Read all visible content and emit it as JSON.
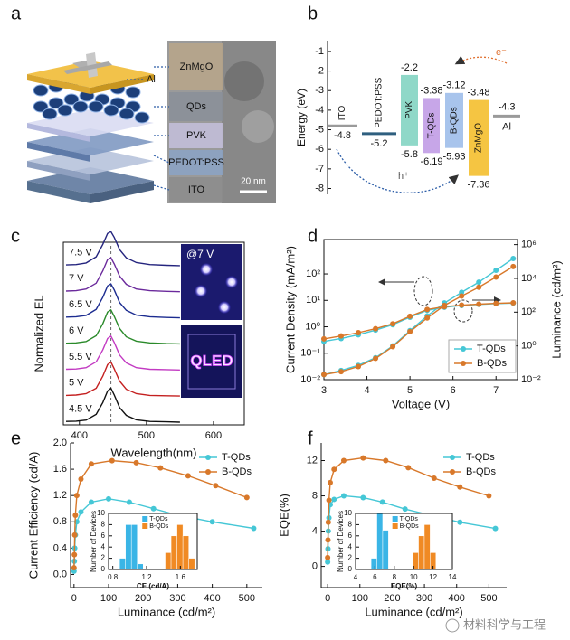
{
  "panel_labels": [
    "a",
    "b",
    "c",
    "d",
    "e",
    "f"
  ],
  "panel_a": {
    "labels": [
      "Al",
      "ZnMgO",
      "QDs",
      "PVK",
      "PEDOT:PSS",
      "ITO"
    ],
    "scale_bar": "20 nm"
  },
  "watermark": "材料科学与工程",
  "chart_data": [
    {
      "type": "range",
      "ylabel": "Energy (eV)",
      "categories": [
        "ITO",
        "PEDOT:PSS",
        "PVK",
        "T-QDs",
        "B-QDs",
        "ZnMgO",
        "Al"
      ],
      "top": [
        null,
        null,
        -2.2,
        -3.38,
        -3.12,
        -3.48,
        null
      ],
      "bottom": [
        -4.8,
        -5.2,
        -5.8,
        -6.19,
        -5.93,
        -7.36,
        -4.3
      ],
      "colors": [
        "#9a9a9a",
        "#2f5f7f",
        "#8fd8c8",
        "#c7a6e8",
        "#a8c4ec",
        "#f5c542",
        "#9a9a9a"
      ],
      "ylim": [
        -8.3,
        -0.45
      ],
      "yticks": [
        -1,
        -2,
        -3,
        -4,
        -5,
        -6,
        -7,
        -8
      ],
      "annotations": [
        "e⁻",
        "h⁺"
      ]
    },
    {
      "type": "ridgeline",
      "ylabel": "Normalized EL",
      "xlabel": "Wavelength(nm)",
      "x": [
        380,
        395,
        410,
        425,
        435,
        442,
        447,
        452,
        460,
        470,
        485,
        505,
        530,
        550
      ],
      "xlim": [
        376,
        646
      ],
      "xticks": [
        400,
        500,
        600
      ],
      "ylim": [
        0,
        1
      ],
      "peak_line": 447,
      "photo_labels": [
        "@7 V",
        "QLED"
      ],
      "series": [
        {
          "name": "7.5 V",
          "color": "#24247e",
          "values": [
            0.02,
            0.03,
            0.08,
            0.26,
            0.63,
            0.95,
            1,
            0.83,
            0.47,
            0.23,
            0.09,
            0.03,
            0.01,
            0
          ]
        },
        {
          "name": "7 V",
          "color": "#6b2a9c",
          "values": [
            0.02,
            0.03,
            0.08,
            0.25,
            0.62,
            0.95,
            1,
            0.82,
            0.46,
            0.22,
            0.08,
            0.03,
            0.01,
            0
          ]
        },
        {
          "name": "6.5 V",
          "color": "#1c2c90",
          "values": [
            0.02,
            0.03,
            0.07,
            0.25,
            0.61,
            0.94,
            1,
            0.82,
            0.45,
            0.22,
            0.08,
            0.03,
            0.01,
            0
          ]
        },
        {
          "name": "6 V",
          "color": "#2a8a2a",
          "values": [
            0.02,
            0.03,
            0.07,
            0.24,
            0.6,
            0.94,
            1,
            0.81,
            0.45,
            0.21,
            0.08,
            0.03,
            0.01,
            0
          ]
        },
        {
          "name": "5.5 V",
          "color": "#c23ac2",
          "values": [
            0.02,
            0.03,
            0.07,
            0.24,
            0.6,
            0.93,
            1,
            0.81,
            0.44,
            0.21,
            0.07,
            0.02,
            0.01,
            0
          ]
        },
        {
          "name": "5 V",
          "color": "#c42020",
          "values": [
            0.02,
            0.03,
            0.07,
            0.23,
            0.59,
            0.93,
            1,
            0.8,
            0.44,
            0.2,
            0.07,
            0.02,
            0.01,
            0
          ]
        },
        {
          "name": "4.5 V",
          "color": "#111111",
          "values": [
            0.02,
            0.03,
            0.06,
            0.23,
            0.58,
            0.92,
            1,
            0.8,
            0.43,
            0.2,
            0.07,
            0.02,
            0.01,
            0
          ]
        }
      ]
    },
    {
      "type": "line",
      "xlabel": "Voltage (V)",
      "ylabel": "Current Density (mA/m²)",
      "y2label": "Luminance (cd/m²)",
      "x": [
        3.0,
        3.4,
        3.8,
        4.2,
        4.6,
        5.0,
        5.4,
        5.8,
        6.2,
        6.6,
        7.0,
        7.4
      ],
      "xlim": [
        3,
        7.5
      ],
      "xticks": [
        3,
        4,
        5,
        6,
        7
      ],
      "ylog": true,
      "ylim": [
        0.01,
        2000
      ],
      "yticks": [
        {
          "value": 0.01,
          "label": "10⁻²"
        },
        {
          "value": 0.1,
          "label": "10⁻¹"
        },
        {
          "value": 1,
          "label": "10⁰"
        },
        {
          "value": 10,
          "label": "10¹"
        },
        {
          "value": 100,
          "label": "10²"
        }
      ],
      "y2log": true,
      "y2lim": [
        0.01,
        2000000
      ],
      "y2ticks": [
        {
          "value": 0.01,
          "label": "10⁻²"
        },
        {
          "value": 1,
          "label": "10⁰"
        },
        {
          "value": 100,
          "label": "10²"
        },
        {
          "value": 10000,
          "label": "10⁴"
        },
        {
          "value": 1000000,
          "label": "10⁶"
        }
      ],
      "legend": "lower right",
      "series": [
        {
          "name": "T-QDs",
          "color": "#45c7d6",
          "values": [
            0.28,
            0.36,
            0.5,
            0.75,
            1.2,
            2.3,
            4.2,
            5.5,
            6.4,
            7.0,
            7.5,
            7.9
          ],
          "y2_values": [
            0.02,
            0.035,
            0.07,
            0.2,
            1.0,
            8,
            60,
            350,
            1500,
            6000,
            30000,
            150000
          ]
        },
        {
          "name": "B-QDs",
          "color": "#d8782a",
          "values": [
            0.35,
            0.45,
            0.6,
            0.85,
            1.3,
            2.5,
            4.5,
            5.8,
            6.6,
            7.2,
            7.7,
            8.1
          ],
          "y2_values": [
            0.02,
            0.03,
            0.06,
            0.18,
            0.9,
            7,
            45,
            250,
            900,
            3000,
            12000,
            50000
          ]
        }
      ]
    },
    {
      "type": "line",
      "xlabel": "Luminance (cd/m²)",
      "ylabel": "Current Efficiency (cd/A)",
      "xlim": [
        -10,
        545
      ],
      "xticks": [
        0,
        100,
        200,
        300,
        400,
        500
      ],
      "ylim": [
        -0.2,
        2.0
      ],
      "yticks": [
        {
          "value": 0,
          "label": "0.0"
        },
        0.4,
        0.8,
        1.2,
        1.6,
        {
          "value": 2,
          "label": "2.0"
        }
      ],
      "legend": "upper right",
      "series": [
        {
          "name": "T-QDs",
          "color": "#45c7d6",
          "x": [
            0,
            1,
            2,
            4,
            8,
            20,
            50,
            100,
            160,
            230,
            300,
            400,
            520
          ],
          "values": [
            0.05,
            0.2,
            0.4,
            0.6,
            0.8,
            0.95,
            1.1,
            1.15,
            1.1,
            1.0,
            0.9,
            0.8,
            0.7
          ]
        },
        {
          "name": "B-QDs",
          "color": "#d8782a",
          "x": [
            0,
            1,
            2,
            4,
            8,
            20,
            50,
            110,
            180,
            250,
            330,
            410,
            500
          ],
          "values": [
            0.1,
            0.3,
            0.6,
            0.9,
            1.2,
            1.45,
            1.68,
            1.73,
            1.7,
            1.62,
            1.5,
            1.35,
            1.17
          ]
        }
      ]
    },
    {
      "type": "histogram",
      "xlabel": "CE (cd/A)",
      "ylabel": "Number of Devices",
      "xlim": [
        0.75,
        1.8
      ],
      "xticks": [
        0.8,
        1.2,
        1.6
      ],
      "ylim": [
        0,
        10
      ],
      "yticks": [
        0,
        2,
        4,
        6,
        8,
        10
      ],
      "series": [
        {
          "name": "T-QDs",
          "color": "#3ab5e6",
          "bins": [
            0.88,
            0.95,
            1.02,
            1.09,
            1.16
          ],
          "values": [
            2,
            8,
            8,
            1
          ]
        },
        {
          "name": "B-QDs",
          "color": "#f08a24",
          "bins": [
            1.42,
            1.49,
            1.56,
            1.63,
            1.7,
            1.77
          ],
          "values": [
            3,
            6,
            8,
            6,
            2
          ]
        }
      ]
    },
    {
      "type": "line",
      "xlabel": "Luminance (cd/m²)",
      "ylabel": "EQE(%)",
      "xlim": [
        -20,
        555
      ],
      "xticks": [
        0,
        100,
        200,
        300,
        400,
        500
      ],
      "ylim": [
        -2.4,
        14
      ],
      "yticks": [
        0,
        4,
        8,
        12
      ],
      "legend": "upper right",
      "series": [
        {
          "name": "T-QDs",
          "color": "#45c7d6",
          "x": [
            0,
            1,
            2,
            4,
            8,
            20,
            50,
            110,
            170,
            240,
            320,
            410,
            520
          ],
          "values": [
            0.5,
            2,
            4,
            5.5,
            7,
            7.6,
            8,
            7.8,
            7.3,
            6.5,
            5.8,
            5,
            4.3
          ]
        },
        {
          "name": "B-QDs",
          "color": "#d8782a",
          "x": [
            0,
            1,
            2,
            4,
            8,
            20,
            50,
            110,
            180,
            250,
            330,
            410,
            500
          ],
          "values": [
            1,
            3,
            5,
            7.5,
            9.5,
            11,
            12,
            12.3,
            12,
            11.2,
            10,
            9,
            8
          ]
        }
      ]
    },
    {
      "type": "histogram",
      "xlabel": "EQE(%)",
      "ylabel": "Number of Devices",
      "xlim": [
        4,
        14
      ],
      "xticks": [
        4,
        6,
        8,
        10,
        12,
        14
      ],
      "ylim": [
        0,
        10
      ],
      "yticks": [
        0,
        2,
        4,
        6,
        8,
        10
      ],
      "series": [
        {
          "name": "T-QDs",
          "color": "#3ab5e6",
          "bins": [
            5.6,
            6.2,
            6.8,
            7.4
          ],
          "values": [
            2,
            10,
            7
          ]
        },
        {
          "name": "B-QDs",
          "color": "#f08a24",
          "bins": [
            9.9,
            10.5,
            11.1,
            11.7,
            12.3
          ],
          "values": [
            3,
            6,
            8,
            3
          ]
        }
      ]
    }
  ]
}
